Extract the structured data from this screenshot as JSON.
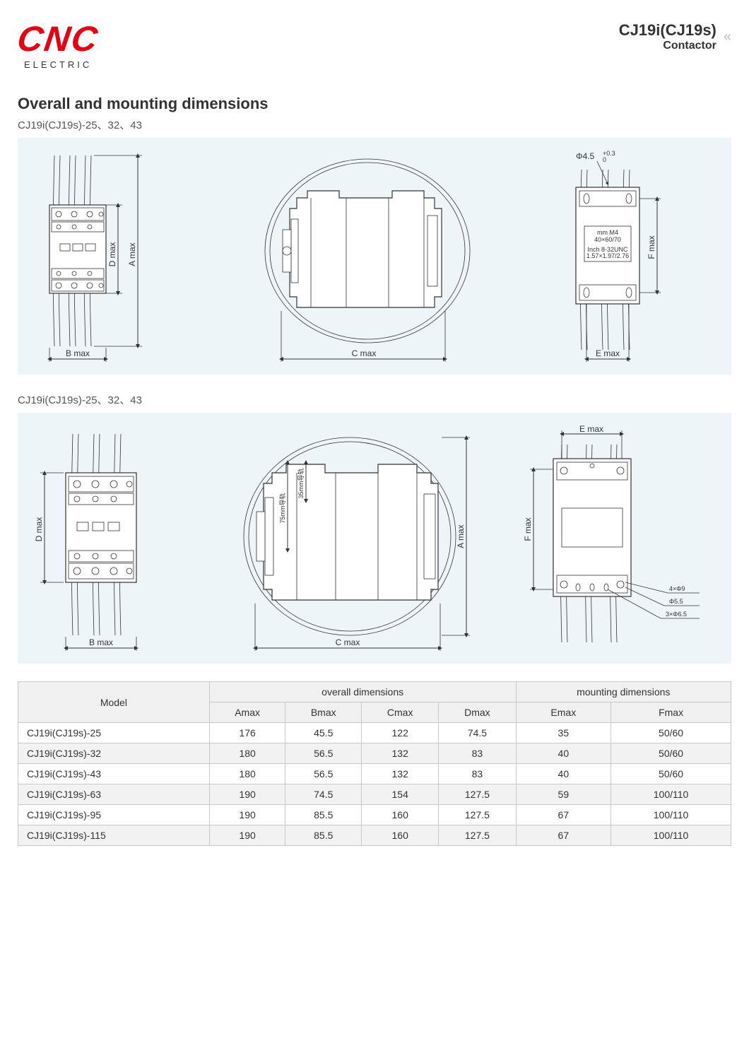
{
  "header": {
    "logo_main": "CNC",
    "logo_sub": "ELECTRIC",
    "product": "CJ19i(CJ19s)",
    "type": "Contactor",
    "chevron": "«"
  },
  "section_title": "Overall and mounting dimensions",
  "panel1": {
    "variant_label": "CJ19i(CJ19s)-25、32、43",
    "labels": {
      "b_max": "B max",
      "c_max": "C max",
      "e_max": "E max",
      "d_max": "D max",
      "a_max": "A max",
      "f_max": "F max",
      "hole": "Φ4.5",
      "hole_tol_top": "+0.3",
      "hole_tol_bot": "0",
      "plate_mm": "mm   M4",
      "plate_vals": "40×60/70",
      "plate_inch": "Inch  8-32UNC",
      "plate_ivals": "1.57×1.97/2.76"
    },
    "colors": {
      "panel_bg": "#eef5f9",
      "line": "#333333"
    }
  },
  "panel2": {
    "variant_label": "CJ19i(CJ19s)-25、32、43",
    "labels": {
      "b_max": "B max",
      "c_max": "C max",
      "e_max": "E max",
      "d_max": "D max",
      "a_max": "A max",
      "f_max": "F max",
      "rail_35": "35mm导轨",
      "rail_75": "75mm导轨",
      "callout1": "4×Φ9",
      "callout2": "Φ5.5",
      "callout3": "3×Φ6.5"
    }
  },
  "table": {
    "columns": {
      "model": "Model",
      "overall": "overall dimensions",
      "mounting": "mounting dimensions",
      "amax": "Amax",
      "bmax": "Bmax",
      "cmax": "Cmax",
      "dmax": "Dmax",
      "emax": "Emax",
      "fmax": "Fmax"
    },
    "rows": [
      {
        "model": "CJ19i(CJ19s)-25",
        "a": "176",
        "b": "45.5",
        "c": "122",
        "d": "74.5",
        "e": "35",
        "f": "50/60"
      },
      {
        "model": "CJ19i(CJ19s)-32",
        "a": "180",
        "b": "56.5",
        "c": "132",
        "d": "83",
        "e": "40",
        "f": "50/60"
      },
      {
        "model": "CJ19i(CJ19s)-43",
        "a": "180",
        "b": "56.5",
        "c": "132",
        "d": "83",
        "e": "40",
        "f": "50/60"
      },
      {
        "model": "CJ19i(CJ19s)-63",
        "a": "190",
        "b": "74.5",
        "c": "154",
        "d": "127.5",
        "e": "59",
        "f": "100/110"
      },
      {
        "model": "CJ19i(CJ19s)-95",
        "a": "190",
        "b": "85.5",
        "c": "160",
        "d": "127.5",
        "e": "67",
        "f": "100/110"
      },
      {
        "model": "CJ19i(CJ19s)-115",
        "a": "190",
        "b": "85.5",
        "c": "160",
        "d": "127.5",
        "e": "67",
        "f": "100/110"
      }
    ]
  }
}
